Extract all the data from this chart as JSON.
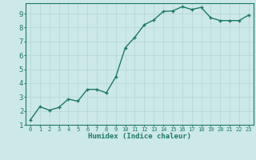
{
  "x": [
    0,
    1,
    2,
    3,
    4,
    5,
    6,
    7,
    8,
    9,
    10,
    11,
    12,
    13,
    14,
    15,
    16,
    17,
    18,
    19,
    20,
    21,
    22,
    23
  ],
  "y": [
    1.35,
    2.3,
    2.05,
    2.25,
    2.85,
    2.7,
    3.55,
    3.55,
    3.3,
    4.45,
    6.55,
    7.3,
    8.2,
    8.55,
    9.15,
    9.2,
    9.5,
    9.3,
    9.45,
    8.7,
    8.5,
    8.5,
    8.5,
    8.9
  ],
  "xlabel": "Humidex (Indice chaleur)",
  "ylim": [
    1,
    9.75
  ],
  "xlim": [
    -0.5,
    23.5
  ],
  "line_color": "#1e7a65",
  "bg_color": "#cce8e8",
  "grid_color": "#b8d8d8",
  "tick_color": "#1e7a65",
  "label_color": "#1e7a65",
  "yticks": [
    1,
    2,
    3,
    4,
    5,
    6,
    7,
    8,
    9
  ],
  "xticks": [
    0,
    1,
    2,
    3,
    4,
    5,
    6,
    7,
    8,
    9,
    10,
    11,
    12,
    13,
    14,
    15,
    16,
    17,
    18,
    19,
    20,
    21,
    22,
    23
  ],
  "marker_size": 2.5,
  "linewidth": 1.0,
  "xlabel_fontsize": 6.5,
  "xtick_fontsize": 5.0,
  "ytick_fontsize": 6.5
}
